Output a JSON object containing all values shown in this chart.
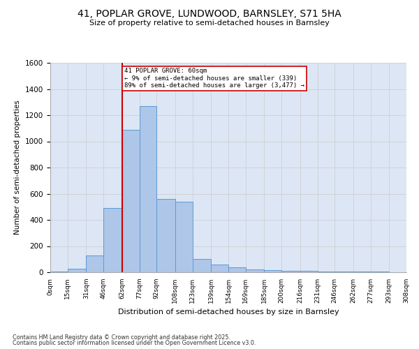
{
  "title_line1": "41, POPLAR GROVE, LUNDWOOD, BARNSLEY, S71 5HA",
  "title_line2": "Size of property relative to semi-detached houses in Barnsley",
  "xlabel": "Distribution of semi-detached houses by size in Barnsley",
  "ylabel": "Number of semi-detached properties",
  "bar_bins": [
    0,
    15,
    31,
    46,
    62,
    77,
    92,
    108,
    123,
    139,
    154,
    169,
    185,
    200,
    216,
    231,
    246,
    262,
    277,
    293,
    308
  ],
  "bar_values": [
    5,
    25,
    130,
    490,
    1090,
    1270,
    560,
    540,
    100,
    60,
    35,
    22,
    18,
    13,
    10,
    8,
    6,
    3,
    3,
    2
  ],
  "bar_color": "#aec6e8",
  "bar_edge_color": "#5b9bd5",
  "property_size": 62,
  "pct_smaller": "9%",
  "count_smaller": 339,
  "pct_larger": "89%",
  "count_larger": 3477,
  "vline_color": "#cc0000",
  "annotation_box_color": "#cc0000",
  "ylim": [
    0,
    1600
  ],
  "yticks": [
    0,
    200,
    400,
    600,
    800,
    1000,
    1200,
    1400,
    1600
  ],
  "grid_color": "#cccccc",
  "bg_color": "#dce6f5",
  "footnote1": "Contains HM Land Registry data © Crown copyright and database right 2025.",
  "footnote2": "Contains public sector information licensed under the Open Government Licence v3.0."
}
